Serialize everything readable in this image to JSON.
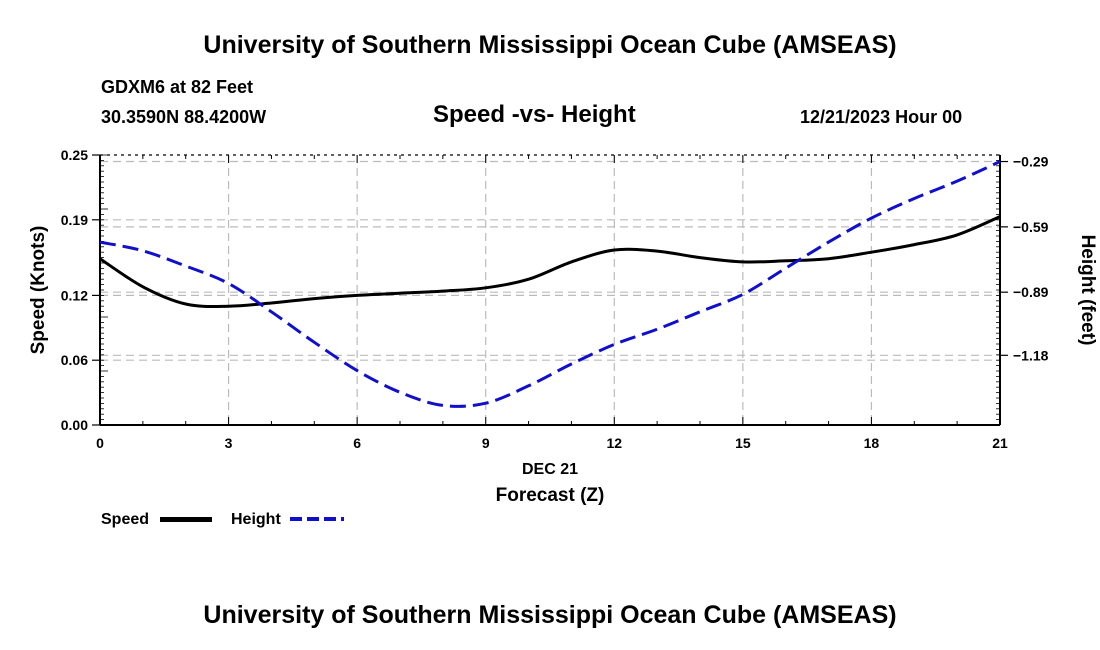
{
  "header": {
    "title": "University of Southern Mississippi Ocean Cube (AMSEAS)",
    "station": "GDXM6 at 82 Feet",
    "coords": "30.3590N  88.4200W",
    "subtitle": "Speed -vs- Height",
    "date": "12/21/2023 Hour 00"
  },
  "footer": {
    "title": "University of Southern Mississippi Ocean Cube (AMSEAS)"
  },
  "legend": {
    "speed_label": "Speed",
    "height_label": "Height"
  },
  "colors": {
    "speed": "#000000",
    "height": "#1010cc",
    "grid": "#bbbbbb"
  },
  "chart_data": {
    "type": "line",
    "title": "Speed -vs- Height",
    "xlabel": "Forecast (Z)",
    "xlabel_date": "DEC 21",
    "ylabel": "Speed (Knots)",
    "y2label": "Height (feet)",
    "xlim": [
      0,
      21
    ],
    "ylim": [
      0,
      0.25
    ],
    "y2lim": [
      -1.5,
      -0.26
    ],
    "x_ticks": [
      0,
      3,
      6,
      9,
      12,
      15,
      18,
      21
    ],
    "x_tick_labels": [
      "0",
      "3",
      "6",
      "9",
      "12",
      "15",
      "18",
      "21"
    ],
    "y_ticks": [
      0,
      0.06,
      0.12,
      0.19,
      0.25
    ],
    "y_tick_labels": [
      "0.00",
      "0.06",
      "0.12",
      "0.19",
      "0.25"
    ],
    "y2_ticks": [
      -0.29,
      -0.59,
      -0.89,
      -1.18
    ],
    "y2_tick_labels": [
      "-0.29",
      "-0.59",
      "-0.89",
      "-1.18"
    ],
    "grid": true,
    "series": [
      {
        "name": "Speed",
        "axis": "left",
        "style": "solid",
        "x": [
          0,
          1,
          2,
          3,
          4,
          5,
          6,
          7,
          8,
          9,
          10,
          11,
          12,
          13,
          14,
          15,
          16,
          17,
          18,
          19,
          20,
          21
        ],
        "values": [
          0.154,
          0.128,
          0.112,
          0.11,
          0.113,
          0.117,
          0.12,
          0.122,
          0.124,
          0.127,
          0.135,
          0.151,
          0.162,
          0.161,
          0.155,
          0.151,
          0.152,
          0.154,
          0.16,
          0.167,
          0.176,
          0.193
        ]
      },
      {
        "name": "Height",
        "axis": "right",
        "style": "dashed",
        "x": [
          0,
          1,
          2,
          3,
          4,
          5,
          6,
          7,
          8,
          9,
          10,
          11,
          12,
          13,
          14,
          15,
          16,
          17,
          18,
          19,
          20,
          21
        ],
        "values": [
          -0.66,
          -0.7,
          -0.77,
          -0.85,
          -0.98,
          -1.12,
          -1.25,
          -1.35,
          -1.41,
          -1.4,
          -1.32,
          -1.22,
          -1.13,
          -1.06,
          -0.98,
          -0.9,
          -0.78,
          -0.66,
          -0.55,
          -0.46,
          -0.38,
          -0.29
        ]
      }
    ]
  }
}
